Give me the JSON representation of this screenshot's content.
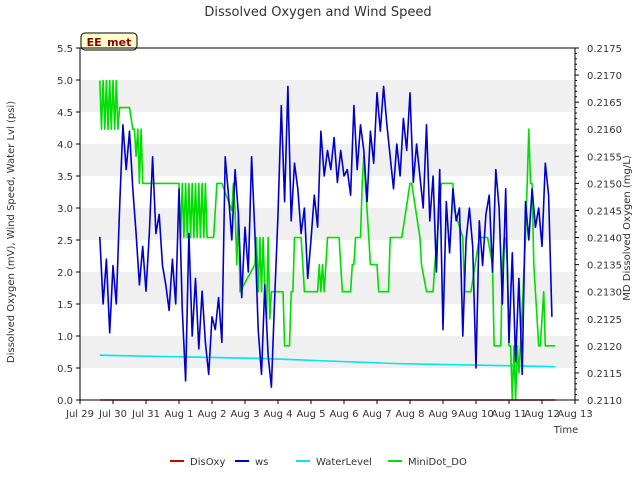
{
  "chart_data": {
    "type": "line",
    "title": "Dissolved Oxygen and Wind Speed",
    "site_label": "EE_met",
    "xlabel": "Time",
    "ylabel_left": "Dissolved Oxygen (mV), Wind Speed, Water Lvl (psi)",
    "ylabel_right": "MD Dissolved Oxygen (mg/L)",
    "x_ticks": [
      "Jul 29",
      "Jul 30",
      "Jul 31",
      "Aug 1",
      "Aug 2",
      "Aug 3",
      "Aug 4",
      "Aug 5",
      "Aug 6",
      "Aug 7",
      "Aug 8",
      "Aug 9",
      "Aug 10",
      "Aug 11",
      "Aug 12",
      "Aug 13"
    ],
    "xlim": [
      0,
      15
    ],
    "ylim_left": [
      0,
      5.5
    ],
    "ylim_right": [
      0.211,
      0.2175
    ],
    "y_ticks_left": [
      0.0,
      0.5,
      1.0,
      1.5,
      2.0,
      2.5,
      3.0,
      3.5,
      4.0,
      4.5,
      5.0,
      5.5
    ],
    "y_ticks_right": [
      0.211,
      0.2115,
      0.212,
      0.2125,
      0.213,
      0.2135,
      0.214,
      0.2145,
      0.215,
      0.2155,
      0.216,
      0.2165,
      0.217,
      0.2175
    ],
    "legend": [
      "DisOxy",
      "ws",
      "WaterLevel",
      "MiniDot_DO"
    ],
    "series": [
      {
        "name": "DisOxy",
        "color": "#cc0000",
        "axis": "left",
        "x": [
          0.6,
          14.4
        ],
        "values": [
          0.0,
          0.0
        ]
      },
      {
        "name": "ws",
        "color": "#0000cc",
        "axis": "left",
        "x": [
          0.6,
          0.7,
          0.8,
          0.9,
          1.0,
          1.1,
          1.2,
          1.3,
          1.4,
          1.5,
          1.6,
          1.7,
          1.8,
          1.9,
          2.0,
          2.1,
          2.2,
          2.3,
          2.4,
          2.5,
          2.6,
          2.7,
          2.8,
          2.9,
          3.0,
          3.1,
          3.2,
          3.3,
          3.4,
          3.5,
          3.6,
          3.7,
          3.8,
          3.9,
          4.0,
          4.1,
          4.2,
          4.3,
          4.4,
          4.5,
          4.6,
          4.7,
          4.8,
          4.9,
          5.0,
          5.1,
          5.2,
          5.3,
          5.4,
          5.5,
          5.6,
          5.7,
          5.8,
          5.9,
          6.0,
          6.1,
          6.2,
          6.3,
          6.4,
          6.5,
          6.6,
          6.7,
          6.8,
          6.9,
          7.0,
          7.1,
          7.2,
          7.3,
          7.4,
          7.5,
          7.6,
          7.7,
          7.8,
          7.9,
          8.0,
          8.1,
          8.2,
          8.3,
          8.4,
          8.5,
          8.6,
          8.7,
          8.8,
          8.9,
          9.0,
          9.1,
          9.2,
          9.3,
          9.4,
          9.5,
          9.6,
          9.7,
          9.8,
          9.9,
          10.0,
          10.1,
          10.2,
          10.3,
          10.4,
          10.5,
          10.6,
          10.7,
          10.8,
          10.9,
          11.0,
          11.1,
          11.2,
          11.3,
          11.4,
          11.5,
          11.6,
          11.7,
          11.8,
          11.9,
          12.0,
          12.1,
          12.2,
          12.3,
          12.4,
          12.5,
          12.6,
          12.7,
          12.8,
          12.9,
          13.0,
          13.1,
          13.2,
          13.3,
          13.4,
          13.5,
          13.6,
          13.7,
          13.8,
          13.9,
          14.0,
          14.1,
          14.2,
          14.3
        ],
        "values": [
          2.55,
          1.5,
          2.2,
          1.05,
          2.1,
          1.5,
          3.0,
          4.3,
          3.6,
          4.2,
          3.3,
          2.6,
          1.8,
          2.4,
          1.7,
          2.6,
          3.8,
          2.6,
          2.9,
          2.1,
          1.8,
          1.4,
          2.2,
          1.5,
          3.3,
          1.4,
          0.3,
          2.6,
          1.0,
          1.9,
          0.8,
          1.7,
          0.9,
          0.4,
          1.3,
          1.1,
          1.6,
          0.9,
          3.8,
          3.2,
          2.5,
          3.6,
          2.9,
          1.6,
          2.7,
          2.0,
          3.8,
          2.6,
          1.1,
          0.4,
          1.8,
          0.7,
          0.2,
          1.6,
          2.9,
          4.6,
          3.1,
          4.9,
          2.8,
          3.7,
          3.3,
          2.6,
          3.0,
          1.9,
          2.5,
          3.2,
          2.7,
          4.2,
          3.5,
          3.9,
          3.6,
          4.1,
          3.4,
          3.9,
          3.5,
          3.6,
          3.2,
          4.6,
          3.6,
          4.3,
          3.9,
          3.1,
          4.2,
          3.7,
          4.8,
          4.2,
          4.9,
          4.3,
          3.8,
          3.3,
          4.0,
          3.5,
          4.4,
          3.9,
          4.8,
          3.4,
          4.0,
          3.5,
          3.0,
          4.3,
          2.8,
          3.5,
          2.0,
          3.6,
          1.1,
          3.1,
          2.3,
          3.3,
          2.8,
          3.0,
          1.0,
          2.5,
          3.0,
          2.4,
          0.5,
          2.8,
          2.1,
          2.9,
          3.2,
          2.0,
          3.6,
          3.0,
          1.5,
          3.3,
          0.9,
          2.3,
          0.6,
          1.9,
          0.4,
          3.1,
          2.5,
          3.3,
          2.7,
          3.0,
          2.4,
          3.7,
          3.2,
          1.3
        ]
      },
      {
        "name": "WaterLevel",
        "color": "#00e5ee",
        "axis": "left",
        "x": [
          0.6,
          1.5,
          2.5,
          3.5,
          4.5,
          5.5,
          6.5,
          7.5,
          8.5,
          9.5,
          10.5,
          11.5,
          12.5,
          13.5,
          14.4
        ],
        "values": [
          0.7,
          0.69,
          0.68,
          0.67,
          0.66,
          0.65,
          0.63,
          0.61,
          0.59,
          0.57,
          0.56,
          0.55,
          0.54,
          0.53,
          0.52
        ]
      },
      {
        "name": "MiniDot_DO",
        "color": "#00dd00",
        "axis": "right",
        "x": [
          0.6,
          0.65,
          0.7,
          0.75,
          0.8,
          0.85,
          0.9,
          0.95,
          1.0,
          1.05,
          1.1,
          1.15,
          1.2,
          1.5,
          1.6,
          1.65,
          1.7,
          1.75,
          1.8,
          1.85,
          1.9,
          2.2,
          2.3,
          3.0,
          3.05,
          3.1,
          3.15,
          3.2,
          3.25,
          3.3,
          3.35,
          3.4,
          3.45,
          3.5,
          3.55,
          3.6,
          3.65,
          3.7,
          3.75,
          3.8,
          3.85,
          3.9,
          3.95,
          4.0,
          4.05,
          4.1,
          4.15,
          4.2,
          4.25,
          4.3,
          4.6,
          4.65,
          4.7,
          4.75,
          4.8,
          4.85,
          5.3,
          5.35,
          5.4,
          5.45,
          5.5,
          5.55,
          5.6,
          5.65,
          5.7,
          5.75,
          5.8,
          5.85,
          5.9,
          5.95,
          6.0,
          6.05,
          6.1,
          6.15,
          6.2,
          6.3,
          6.35,
          6.4,
          6.45,
          6.5,
          6.55,
          6.6,
          6.65,
          6.7,
          6.75,
          6.8,
          7.2,
          7.25,
          7.3,
          7.35,
          7.4,
          7.45,
          7.5,
          7.55,
          7.6,
          7.65,
          7.8,
          7.85,
          7.9,
          7.95,
          8.2,
          8.25,
          8.3,
          8.35,
          8.4,
          8.45,
          8.5,
          8.55,
          8.6,
          8.65,
          8.7,
          8.75,
          8.8,
          8.85,
          9.0,
          9.05,
          9.3,
          9.35,
          9.4,
          9.45,
          9.7,
          9.75,
          10.0,
          10.05,
          10.3,
          10.35,
          10.5,
          10.55,
          10.7,
          10.75,
          10.9,
          10.95,
          11.3,
          11.35,
          11.6,
          11.65,
          11.8,
          11.85,
          12.1,
          12.15,
          12.3,
          12.35,
          12.5,
          12.55,
          12.7,
          12.75,
          12.8,
          12.85,
          12.9,
          12.95,
          13.0,
          13.05,
          13.1,
          13.15,
          13.2,
          13.25,
          13.3,
          13.35,
          13.5,
          13.55,
          13.6,
          13.65,
          13.7,
          13.75,
          13.9,
          13.95,
          14.05,
          14.1,
          14.2,
          14.3,
          14.4
        ],
        "values": [
          0.2169,
          0.216,
          0.2169,
          0.216,
          0.2169,
          0.216,
          0.2169,
          0.216,
          0.2169,
          0.216,
          0.2169,
          0.216,
          0.2164,
          0.2164,
          0.216,
          0.216,
          0.2155,
          0.216,
          0.215,
          0.216,
          0.215,
          0.215,
          0.215,
          0.215,
          0.214,
          0.215,
          0.214,
          0.215,
          0.214,
          0.215,
          0.214,
          0.215,
          0.214,
          0.215,
          0.214,
          0.215,
          0.214,
          0.215,
          0.214,
          0.215,
          0.214,
          0.214,
          0.214,
          0.214,
          0.214,
          0.2145,
          0.215,
          0.215,
          0.215,
          0.215,
          0.2145,
          0.215,
          0.2145,
          0.2135,
          0.2145,
          0.213,
          0.2135,
          0.214,
          0.213,
          0.214,
          0.213,
          0.214,
          0.213,
          0.2125,
          0.214,
          0.2125,
          0.213,
          0.213,
          0.213,
          0.213,
          0.213,
          0.213,
          0.213,
          0.213,
          0.212,
          0.212,
          0.212,
          0.213,
          0.213,
          0.214,
          0.214,
          0.214,
          0.214,
          0.214,
          0.2135,
          0.213,
          0.213,
          0.2135,
          0.213,
          0.2135,
          0.213,
          0.2135,
          0.214,
          0.214,
          0.214,
          0.214,
          0.214,
          0.214,
          0.2135,
          0.213,
          0.213,
          0.2135,
          0.2135,
          0.214,
          0.214,
          0.214,
          0.214,
          0.215,
          0.2155,
          0.215,
          0.2145,
          0.214,
          0.2135,
          0.2135,
          0.2135,
          0.213,
          0.213,
          0.213,
          0.214,
          0.214,
          0.214,
          0.214,
          0.215,
          0.215,
          0.214,
          0.2135,
          0.213,
          0.213,
          0.213,
          0.2135,
          0.2145,
          0.215,
          0.215,
          0.2145,
          0.214,
          0.213,
          0.213,
          0.213,
          0.214,
          0.214,
          0.214,
          0.214,
          0.2135,
          0.212,
          0.212,
          0.212,
          0.2135,
          0.214,
          0.214,
          0.2135,
          0.212,
          0.212,
          0.211,
          0.212,
          0.211,
          0.212,
          0.2115,
          0.212,
          0.214,
          0.215,
          0.216,
          0.215,
          0.215,
          0.2135,
          0.212,
          0.212,
          0.213,
          0.212,
          0.212,
          0.212,
          0.212
        ]
      }
    ]
  }
}
